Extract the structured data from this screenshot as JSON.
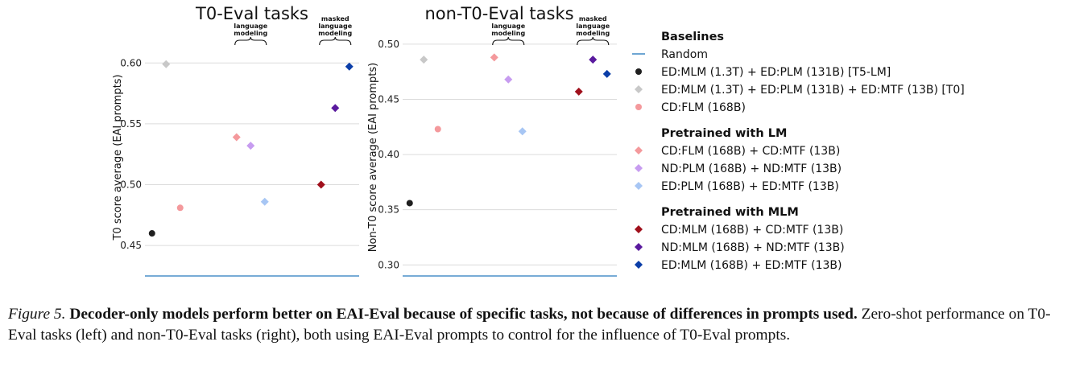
{
  "chart_data": [
    {
      "type": "scatter",
      "title": "T0-Eval tasks",
      "ylabel": "T0 score average (EAI prompts)",
      "ylim": [
        0.425,
        0.62
      ],
      "yticks": [
        0.45,
        0.5,
        0.55,
        0.6
      ],
      "ytick_labels": [
        "0.45",
        "0.50",
        "0.55",
        "0.60"
      ],
      "random_baseline": 0.425,
      "annotations": [
        {
          "lines": [
            "language",
            "modeling"
          ],
          "x_range": [
            7,
            9
          ]
        },
        {
          "lines": [
            "masked",
            "language",
            "modeling"
          ],
          "x_range": [
            13,
            15
          ]
        }
      ],
      "points": [
        {
          "series": "ED:MLM (1.3T) + ED:PLM (131B) [T5-LM]",
          "x": 1,
          "y": 0.46
        },
        {
          "series": "ED:MLM (1.3T) + ED:PLM (131B) + ED:MTF (13B) [T0]",
          "x": 2,
          "y": 0.599
        },
        {
          "series": "CD:FLM (168B)",
          "x": 3,
          "y": 0.481
        },
        {
          "series": "CD:FLM (168B) + CD:MTF (13B)",
          "x": 7,
          "y": 0.539
        },
        {
          "series": "ND:PLM (168B) + ND:MTF (13B)",
          "x": 8,
          "y": 0.532
        },
        {
          "series": "ED:PLM (168B) + ED:MTF (13B)",
          "x": 9,
          "y": 0.486
        },
        {
          "series": "CD:MLM (168B) + CD:MTF (13B)",
          "x": 13,
          "y": 0.5
        },
        {
          "series": "ND:MLM (168B) + ND:MTF (13B)",
          "x": 14,
          "y": 0.563
        },
        {
          "series": "ED:MLM (168B) + ED:MTF (13B)",
          "x": 15,
          "y": 0.597
        }
      ]
    },
    {
      "type": "scatter",
      "title": "non-T0-Eval tasks",
      "ylabel": "Non-T0 score average (EAI prompts)",
      "ylim": [
        0.29,
        0.505
      ],
      "yticks": [
        0.3,
        0.35,
        0.4,
        0.45,
        0.5
      ],
      "ytick_labels": [
        "0.30",
        "0.35",
        "0.40",
        "0.45",
        "0.50"
      ],
      "random_baseline": 0.29,
      "annotations": [
        {
          "lines": [
            "language",
            "modeling"
          ],
          "x_range": [
            7,
            9
          ]
        },
        {
          "lines": [
            "masked",
            "language",
            "modeling"
          ],
          "x_range": [
            13,
            15
          ]
        }
      ],
      "points": [
        {
          "series": "ED:MLM (1.3T) + ED:PLM (131B) [T5-LM]",
          "x": 1,
          "y": 0.356
        },
        {
          "series": "ED:MLM (1.3T) + ED:PLM (131B) + ED:MTF (13B) [T0]",
          "x": 2,
          "y": 0.486
        },
        {
          "series": "CD:FLM (168B)",
          "x": 3,
          "y": 0.423
        },
        {
          "series": "CD:FLM (168B) + CD:MTF (13B)",
          "x": 7,
          "y": 0.488
        },
        {
          "series": "ND:PLM (168B) + ND:MTF (13B)",
          "x": 8,
          "y": 0.468
        },
        {
          "series": "ED:PLM (168B) + ED:MTF (13B)",
          "x": 9,
          "y": 0.421
        },
        {
          "series": "CD:MLM (168B) + CD:MTF (13B)",
          "x": 13,
          "y": 0.457
        },
        {
          "series": "ND:MLM (168B) + ND:MTF (13B)",
          "x": 14,
          "y": 0.486
        },
        {
          "series": "ED:MLM (168B) + ED:MTF (13B)",
          "x": 15,
          "y": 0.473
        }
      ]
    }
  ],
  "legend": {
    "placement": "right",
    "groups": [
      {
        "heading": "Baselines",
        "items": [
          {
            "label": "Random",
            "marker": "line",
            "color": "#4a90c8"
          },
          {
            "label": "ED:MLM (1.3T) + ED:PLM (131B) [T5-LM]",
            "marker": "circle",
            "color": "#1f1f1f"
          },
          {
            "label": "ED:MLM (1.3T) + ED:PLM (131B) + ED:MTF (13B) [T0]",
            "marker": "diamond",
            "color": "#c8c8c8"
          },
          {
            "label": "CD:FLM (168B)",
            "marker": "circle",
            "color": "#f4999c"
          }
        ]
      },
      {
        "heading": "Pretrained with LM",
        "items": [
          {
            "label": "CD:FLM (168B) + CD:MTF (13B)",
            "marker": "diamond",
            "color": "#f4999c"
          },
          {
            "label": "ND:PLM (168B) + ND:MTF (13B)",
            "marker": "diamond",
            "color": "#c79cf0"
          },
          {
            "label": "ED:PLM (168B) + ED:MTF (13B)",
            "marker": "diamond",
            "color": "#a7c6f4"
          }
        ]
      },
      {
        "heading": "Pretrained with MLM",
        "items": [
          {
            "label": "CD:MLM (168B) + CD:MTF (13B)",
            "marker": "diamond",
            "color": "#a0101c"
          },
          {
            "label": "ND:MLM (168B) + ND:MTF (13B)",
            "marker": "diamond",
            "color": "#5a1a9e"
          },
          {
            "label": "ED:MLM (168B) + ED:MTF (13B)",
            "marker": "diamond",
            "color": "#0b3ea8"
          }
        ]
      }
    ]
  },
  "caption": {
    "label": "Figure 5.",
    "bold": "Decoder-only models perform better on EAI-Eval because of specific tasks, not because of differences in prompts used.",
    "text": "Zero-shot performance on T0-Eval tasks (left) and non-T0-Eval tasks (right), both using EAI-Eval prompts to control for the influence of T0-Eval prompts."
  }
}
